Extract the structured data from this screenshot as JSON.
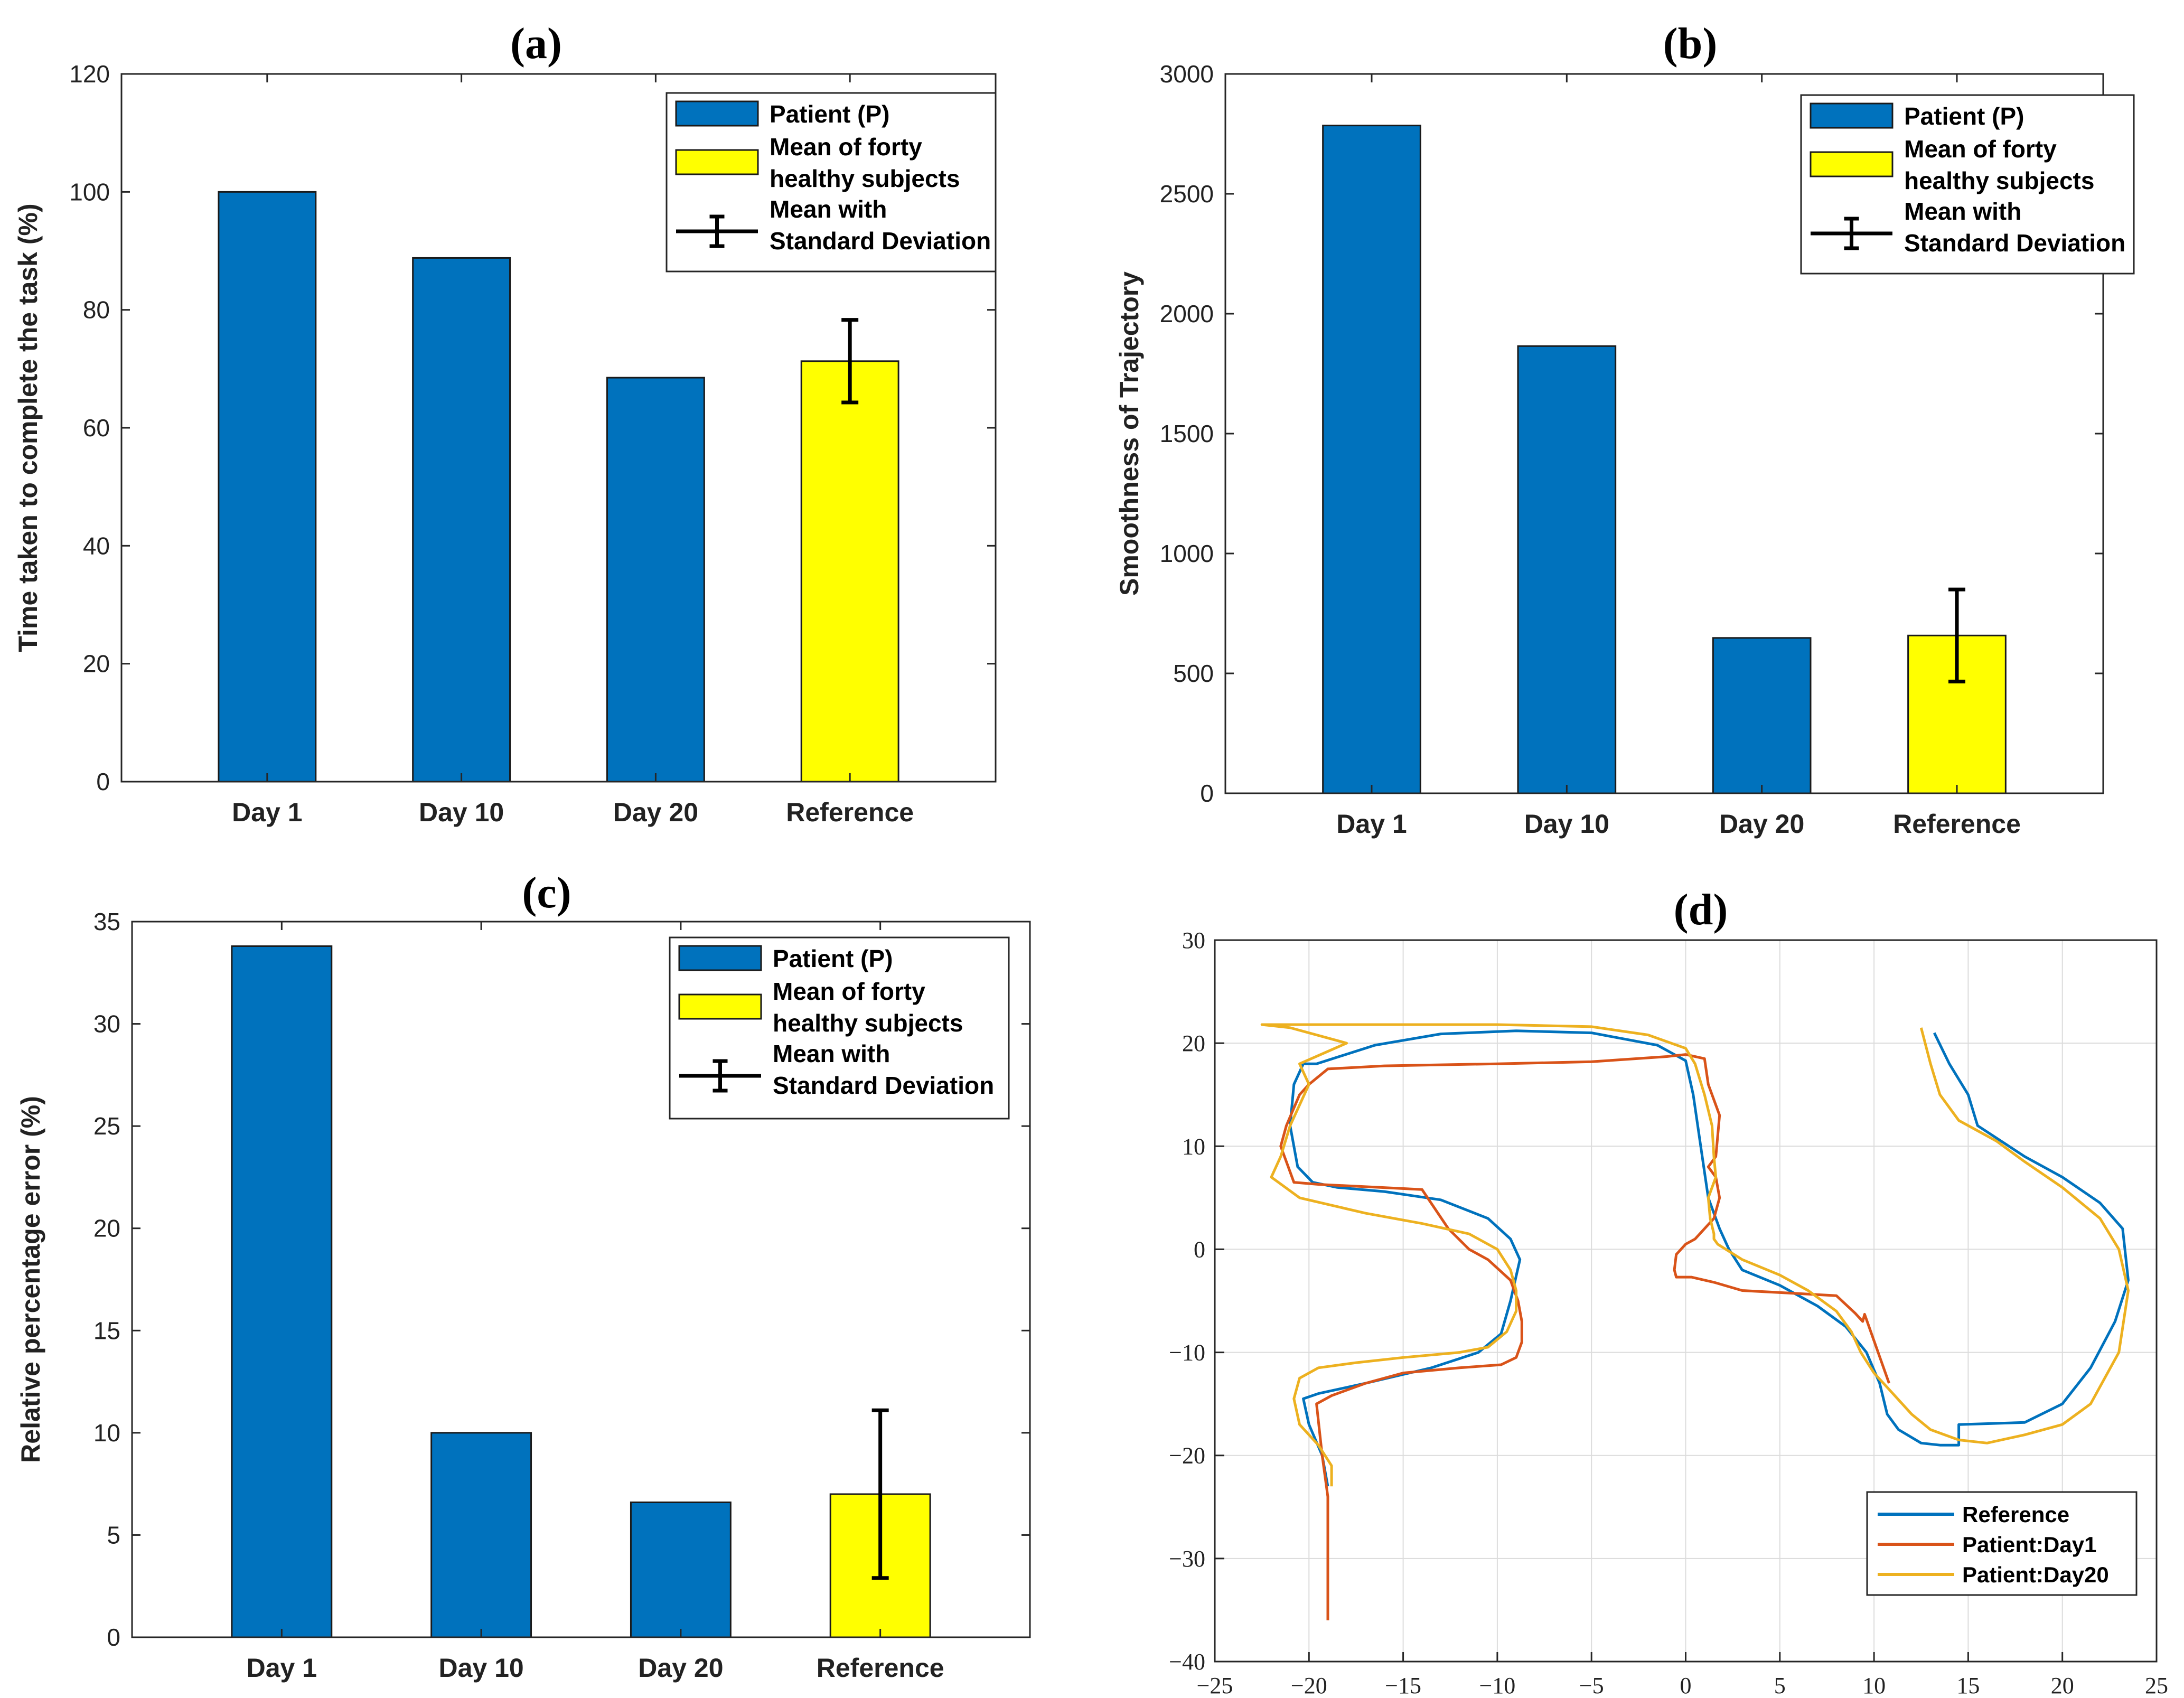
{
  "colors": {
    "patient": "#0072BD",
    "healthy": "#FFFF00",
    "reference_line": "#0072BD",
    "day1_line": "#D95319",
    "day20_line": "#EDB120"
  },
  "legend_bar": {
    "patient": "Patient (P)",
    "healthy_line1": "Mean of forty",
    "healthy_line2": "healthy subjects",
    "errorbar_line1": "Mean with",
    "errorbar_line2": "Standard Deviation"
  },
  "chart_data": [
    {
      "id": "a",
      "type": "bar",
      "title": "(a)",
      "ylabel": "Time taken to complete the task (%)",
      "xlabel": "",
      "categories": [
        "Day 1",
        "Day 10",
        "Day 20",
        "Reference"
      ],
      "values": [
        100,
        88.8,
        68.5,
        71.3
      ],
      "bar_kind": [
        "patient",
        "patient",
        "patient",
        "healthy"
      ],
      "error": [
        null,
        null,
        null,
        7.0
      ],
      "ylim": [
        0,
        120
      ],
      "yticks": [
        0,
        20,
        40,
        60,
        80,
        100,
        120
      ],
      "legend_position": "top-right"
    },
    {
      "id": "b",
      "type": "bar",
      "title": "(b)",
      "ylabel": "Smoothness of Trajectory",
      "xlabel": "",
      "categories": [
        "Day 1",
        "Day 10",
        "Day 20",
        "Reference"
      ],
      "values": [
        2785,
        1865,
        648,
        658
      ],
      "bar_kind": [
        "patient",
        "patient",
        "patient",
        "healthy"
      ],
      "error": [
        null,
        null,
        null,
        192
      ],
      "ylim": [
        0,
        3000
      ],
      "yticks": [
        0,
        500,
        1000,
        1500,
        2000,
        2500,
        3000
      ],
      "legend_position": "top-right"
    },
    {
      "id": "c",
      "type": "bar",
      "title": "(c)",
      "ylabel": "Relative percentage error (%)",
      "xlabel": "",
      "categories": [
        "Day 1",
        "Day 10",
        "Day 20",
        "Reference"
      ],
      "values": [
        33.8,
        10.0,
        6.6,
        7.0
      ],
      "bar_kind": [
        "patient",
        "patient",
        "patient",
        "healthy"
      ],
      "error": [
        null,
        null,
        null,
        4.1
      ],
      "ylim": [
        0,
        35
      ],
      "yticks": [
        0,
        5,
        10,
        15,
        20,
        25,
        30,
        35
      ],
      "legend_position": "top-right"
    },
    {
      "id": "d",
      "type": "line",
      "title": "(d)",
      "xlabel": "",
      "ylabel": "",
      "xlim": [
        -25,
        25
      ],
      "ylim": [
        -40,
        30
      ],
      "xticks": [
        -25,
        -20,
        -15,
        -10,
        -5,
        0,
        5,
        10,
        15,
        20,
        25
      ],
      "yticks": [
        -40,
        -30,
        -20,
        -10,
        0,
        10,
        20,
        30
      ],
      "xtick_labels": [
        "−25",
        "−20",
        "−15",
        "−10",
        "−5",
        "0",
        "5",
        "10",
        "15",
        "20",
        "25"
      ],
      "ytick_labels": [
        "−40",
        "−30",
        "−20",
        "−10",
        "0",
        "10",
        "20",
        "30"
      ],
      "grid": true,
      "legend_position": "bottom-right",
      "series": [
        {
          "name": "Reference",
          "color_key": "reference_line",
          "x": [
            -19,
            -19.3,
            -20.0,
            -20.3,
            -19.5,
            -17.0,
            -13.5,
            -11.0,
            -9.8,
            -9.3,
            -8.8,
            -9.3,
            -10.5,
            -13.0,
            -16.0,
            -18.5,
            -19.8,
            -20.6,
            -21.0,
            -20.8,
            -20.3,
            -19.6,
            -16.5,
            -13.0,
            -9.0,
            -5.0,
            -1.5,
            0.0,
            0.4,
            0.8,
            1.2,
            1.8,
            2.3,
            3.0,
            5.0,
            7.0,
            8.5,
            9.6,
            10.3,
            10.7,
            11.3,
            12.5,
            13.5,
            14.5,
            14.5,
            18.0,
            20.0,
            21.5,
            22.8,
            23.5,
            23.2,
            22.0,
            20.0,
            18.0,
            15.5,
            15.0,
            14.0,
            13.2
          ],
          "y": [
            -23.0,
            -20.0,
            -17.0,
            -14.5,
            -14.0,
            -13.0,
            -11.5,
            -10.0,
            -8.2,
            -5.0,
            -1.0,
            1.0,
            3.0,
            4.8,
            5.6,
            6.0,
            6.5,
            8.0,
            12.0,
            16.0,
            18.0,
            18.0,
            19.8,
            20.9,
            21.2,
            21.0,
            19.8,
            18.3,
            15.0,
            10.0,
            5.0,
            2.0,
            0.0,
            -2.0,
            -3.5,
            -5.5,
            -7.5,
            -10.0,
            -13.0,
            -16.0,
            -17.5,
            -18.8,
            -19.0,
            -19.0,
            -17.0,
            -16.8,
            -15.0,
            -11.5,
            -7.0,
            -3.0,
            2.0,
            4.5,
            7.0,
            9.0,
            12.0,
            15.0,
            18.0,
            21.0
          ]
        },
        {
          "name": "Patient:Day1",
          "color_key": "day1_line",
          "x": [
            -19.0,
            -19.0,
            -19.3,
            -19.6,
            -18.8,
            -17.0,
            -15.0,
            -12.0,
            -9.8,
            -9.0,
            -8.7,
            -8.7,
            -8.9,
            -9.3,
            -10.5,
            -11.5,
            -12.6,
            -14.0,
            -19.5,
            -20.8,
            -21.5,
            -21.2,
            -20.5,
            -20.0,
            -19.0,
            -16.0,
            -10.0,
            -5.0,
            -1.0,
            0.0,
            1.0,
            1.2,
            1.8,
            1.6,
            1.2,
            1.6,
            1.8,
            1.5,
            0.5,
            0.0,
            -0.5,
            -0.6,
            -0.5,
            0.3,
            1.5,
            3.0,
            6.0,
            8.0,
            9.0,
            9.4,
            9.5,
            10.8
          ],
          "y": [
            -36.0,
            -24.0,
            -20.0,
            -15.0,
            -14.2,
            -13.0,
            -12.0,
            -11.5,
            -11.2,
            -10.5,
            -9.0,
            -7.0,
            -5.0,
            -3.0,
            -1.0,
            0.0,
            2.0,
            5.8,
            6.3,
            6.5,
            10.0,
            12.0,
            15.0,
            16.0,
            17.5,
            17.8,
            18.0,
            18.2,
            18.7,
            18.9,
            18.5,
            16.0,
            13.0,
            9.0,
            8.0,
            7.0,
            5.0,
            3.0,
            1.0,
            0.5,
            -0.5,
            -2.0,
            -2.7,
            -2.7,
            -3.2,
            -4.0,
            -4.3,
            -4.5,
            -6.2,
            -7.0,
            -6.3,
            -13.0
          ]
        },
        {
          "name": "Patient:Day20",
          "color_key": "day20_line",
          "x": [
            -18.8,
            -18.8,
            -19.5,
            -20.5,
            -20.8,
            -20.5,
            -19.5,
            -17.5,
            -15.0,
            -12.0,
            -10.5,
            -9.5,
            -9.0,
            -9.0,
            -9.3,
            -10.0,
            -11.5,
            -14.0,
            -17.0,
            -20.5,
            -22.0,
            -21.5,
            -21.0,
            -20.5,
            -20.0,
            -20.5,
            -18.0,
            -21.0,
            -22.5,
            -16.0,
            -10.0,
            -5.0,
            -2.0,
            0.0,
            0.5,
            1.0,
            1.4,
            1.5,
            1.6,
            1.2,
            1.3,
            1.5,
            1.5,
            1.7,
            3.0,
            5.0,
            6.5,
            8.0,
            8.8,
            9.3,
            10.0,
            11.0,
            12.0,
            13.0,
            14.5,
            16.0,
            18.0,
            20.0,
            21.5,
            23.0,
            23.5,
            23.0,
            22.0,
            20.0,
            18.0,
            16.5,
            14.5,
            13.5,
            13.0,
            12.5
          ],
          "y": [
            -23.0,
            -21.0,
            -19.0,
            -17.0,
            -14.5,
            -12.5,
            -11.5,
            -11.0,
            -10.5,
            -10.0,
            -9.5,
            -8.0,
            -6.0,
            -4.0,
            -2.0,
            0.0,
            1.5,
            2.5,
            3.5,
            5.0,
            7.0,
            9.0,
            12.0,
            14.0,
            16.0,
            18.0,
            20.0,
            21.5,
            21.8,
            21.8,
            21.8,
            21.6,
            20.8,
            19.5,
            18.0,
            15.0,
            12.0,
            9.0,
            7.0,
            5.0,
            3.0,
            1.5,
            1.0,
            0.5,
            -1.0,
            -2.5,
            -4.0,
            -6.0,
            -8.0,
            -10.0,
            -12.0,
            -14.0,
            -16.0,
            -17.5,
            -18.5,
            -18.8,
            -18.0,
            -17.0,
            -15.0,
            -10.0,
            -4.0,
            0.0,
            3.0,
            6.0,
            8.5,
            10.5,
            12.5,
            15.0,
            18.0,
            21.5
          ]
        }
      ]
    }
  ]
}
